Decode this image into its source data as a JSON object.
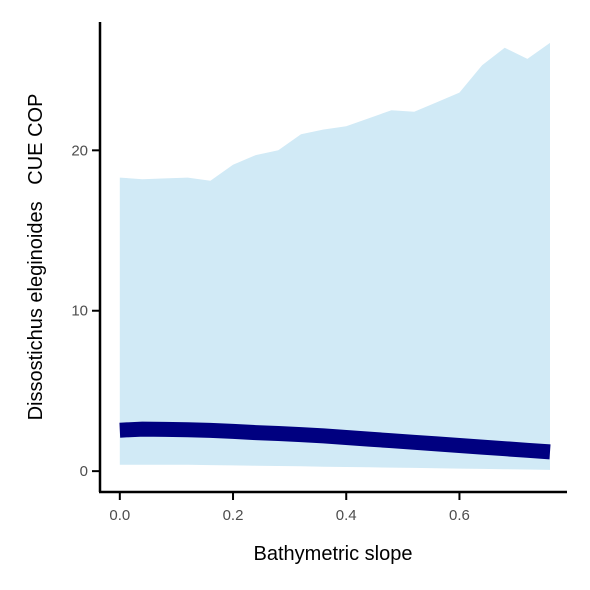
{
  "chart_data": {
    "type": "area",
    "xlabel": "Bathymetric slope",
    "ylabel": "Dissostichus eleginoides   CUE COP",
    "xlim": [
      -0.035,
      0.79
    ],
    "ylim": [
      -1.3,
      28
    ],
    "x_ticks": [
      0.0,
      0.2,
      0.4,
      0.6
    ],
    "x_tick_labels": [
      "0.0",
      "0.2",
      "0.4",
      "0.6"
    ],
    "y_ticks": [
      0,
      10,
      20
    ],
    "y_tick_labels": [
      "0",
      "10",
      "20"
    ],
    "grid": false,
    "legend": "none",
    "x": [
      0.0,
      0.04,
      0.08,
      0.12,
      0.16,
      0.2,
      0.24,
      0.28,
      0.32,
      0.36,
      0.4,
      0.44,
      0.48,
      0.52,
      0.56,
      0.6,
      0.64,
      0.68,
      0.72,
      0.76
    ],
    "series": [
      {
        "role": "upper_bound",
        "values": [
          18.3,
          18.2,
          18.25,
          18.3,
          18.1,
          19.1,
          19.7,
          20.0,
          21.0,
          21.3,
          21.5,
          22.0,
          22.5,
          22.4,
          23.0,
          23.6,
          25.3,
          26.4,
          25.7,
          26.7
        ]
      },
      {
        "role": "lower_bound",
        "values": [
          0.4,
          0.4,
          0.4,
          0.4,
          0.38,
          0.36,
          0.34,
          0.32,
          0.3,
          0.28,
          0.26,
          0.24,
          0.22,
          0.2,
          0.18,
          0.16,
          0.14,
          0.12,
          0.1,
          0.08
        ]
      },
      {
        "role": "mean",
        "values": [
          2.55,
          2.62,
          2.6,
          2.58,
          2.54,
          2.48,
          2.4,
          2.35,
          2.28,
          2.2,
          2.1,
          2.0,
          1.9,
          1.8,
          1.7,
          1.6,
          1.5,
          1.4,
          1.3,
          1.2
        ]
      }
    ],
    "colors": {
      "ribbon": "#d1eaf6",
      "line": "#000080",
      "axis": "#000000",
      "tick_label": "#4d4d4d"
    }
  }
}
